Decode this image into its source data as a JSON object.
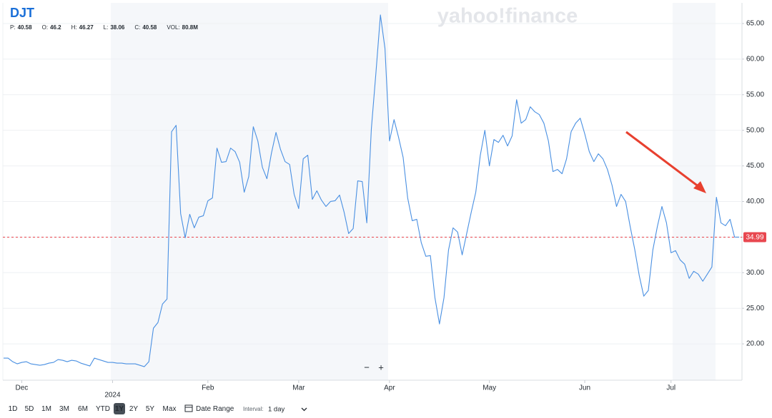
{
  "chart_data": {
    "type": "line",
    "title": "DJT",
    "watermark": "yahoo!finance",
    "ohlc": [
      {
        "label": "P:",
        "value": 40.58
      },
      {
        "label": "O:",
        "value": 46.2
      },
      {
        "label": "H:",
        "value": 46.27
      },
      {
        "label": "L:",
        "value": 38.06
      },
      {
        "label": "C:",
        "value": 40.58
      },
      {
        "label": "VOL:",
        "value": "80.8M"
      }
    ],
    "categories": [
      null,
      null,
      null,
      null,
      "Dec",
      null,
      null,
      null,
      null,
      null,
      null,
      null,
      null,
      null,
      null,
      null,
      null,
      null,
      null,
      null,
      null,
      null,
      null,
      null,
      "2024",
      null,
      null,
      null,
      null,
      null,
      null,
      null,
      null,
      null,
      null,
      null,
      null,
      null,
      null,
      null,
      null,
      null,
      null,
      null,
      null,
      "Feb",
      null,
      null,
      null,
      null,
      null,
      null,
      null,
      null,
      null,
      null,
      null,
      null,
      null,
      null,
      null,
      null,
      null,
      null,
      null,
      "Mar",
      null,
      null,
      null,
      null,
      null,
      null,
      null,
      null,
      null,
      null,
      null,
      null,
      null,
      null,
      null,
      null,
      null,
      null,
      null,
      "Apr",
      null,
      null,
      null,
      null,
      null,
      null,
      null,
      null,
      null,
      null,
      null,
      null,
      null,
      null,
      null,
      null,
      null,
      null,
      null,
      null,
      null,
      "May",
      null,
      null,
      null,
      null,
      null,
      null,
      null,
      null,
      null,
      null,
      null,
      null,
      null,
      null,
      null,
      null,
      null,
      null,
      null,
      null,
      "Jun",
      null,
      null,
      null,
      null,
      null,
      null,
      null,
      null,
      null,
      null,
      null,
      null,
      null,
      null,
      null,
      null,
      null,
      null,
      "Jul",
      null,
      null,
      null,
      null,
      null,
      null,
      null,
      null,
      null,
      null,
      null,
      null,
      null,
      null,
      null
    ],
    "series": [
      {
        "name": "DJT",
        "color": "#4a90e2",
        "values": [
          18.0,
          18.0,
          17.5,
          17.2,
          17.4,
          17.5,
          17.2,
          17.1,
          17.0,
          17.1,
          17.3,
          17.4,
          17.8,
          17.7,
          17.5,
          17.7,
          17.6,
          17.3,
          17.1,
          16.9,
          18.0,
          17.8,
          17.6,
          17.4,
          17.4,
          17.3,
          17.3,
          17.2,
          17.2,
          17.2,
          17.0,
          16.8,
          17.5,
          22.2,
          23.0,
          25.6,
          26.3,
          49.8,
          50.7,
          38.3,
          34.9,
          38.2,
          36.3,
          37.8,
          38.0,
          40.1,
          40.5,
          47.5,
          45.5,
          45.6,
          47.5,
          47.0,
          45.5,
          41.3,
          43.5,
          50.5,
          48.5,
          44.8,
          43.2,
          46.8,
          49.7,
          47.3,
          45.6,
          45.2,
          41.0,
          39.0,
          46.0,
          46.5,
          40.3,
          41.5,
          40.2,
          39.3,
          40.0,
          40.1,
          40.9,
          38.5,
          35.5,
          36.2,
          42.9,
          42.8,
          37.0,
          50.2,
          58.0,
          66.2,
          61.5,
          48.5,
          51.5,
          49.0,
          46.2,
          40.5,
          37.3,
          37.5,
          34.2,
          32.3,
          32.4,
          26.5,
          22.8,
          26.5,
          33.2,
          36.3,
          35.7,
          32.5,
          35.5,
          38.5,
          41.3,
          46.5,
          50.0,
          45.0,
          48.7,
          48.3,
          49.3,
          47.8,
          49.2,
          54.3,
          51.0,
          51.5,
          53.3,
          52.6,
          52.2,
          51.0,
          48.5,
          44.2,
          44.5,
          43.9,
          46.0,
          49.8,
          51.0,
          51.7,
          49.5,
          47.0,
          45.6,
          46.7,
          46.0,
          44.5,
          42.3,
          39.3,
          41.0,
          40.0,
          36.5,
          33.3,
          29.6,
          26.7,
          27.5,
          33.2,
          36.5,
          39.3,
          37.0,
          32.8,
          33.1,
          31.8,
          31.2,
          29.2,
          30.2,
          29.8,
          28.8,
          29.8,
          30.8,
          40.6,
          37.0,
          36.6,
          37.5,
          35.0,
          34.99
        ]
      }
    ],
    "last_price": 34.99,
    "last_price_color": "#e8474f",
    "ylim": [
      14.9,
      67.8
    ],
    "yticks": [
      {
        "value": 20,
        "label": "20.00"
      },
      {
        "value": 25,
        "label": "25.00"
      },
      {
        "value": 30,
        "label": "30.00"
      },
      {
        "value": 35,
        "label": "35.00"
      },
      {
        "value": 40,
        "label": "40.00"
      },
      {
        "value": 45,
        "label": "45.00"
      },
      {
        "value": 50,
        "label": "50.00"
      },
      {
        "value": 55,
        "label": "55.00"
      },
      {
        "value": 60,
        "label": "60.00"
      },
      {
        "value": 65,
        "label": "65.00"
      }
    ],
    "grid": true,
    "zoom": [
      "−",
      "+"
    ],
    "ranges": [
      "1D",
      "5D",
      "1M",
      "3M",
      "6M",
      "YTD",
      "1Y",
      "2Y",
      "5Y",
      "Max"
    ],
    "selected_range": "1Y",
    "date_range": "Date Range",
    "interval_label": "Interval:",
    "interval": "1 day"
  }
}
